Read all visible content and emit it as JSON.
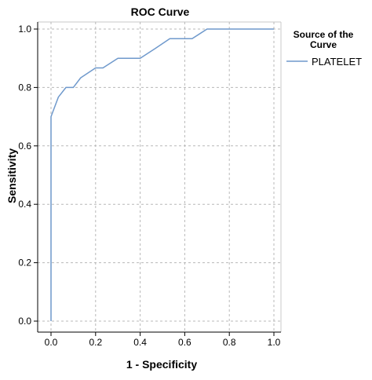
{
  "chart_data": {
    "type": "line",
    "title": "ROC Curve",
    "xlabel": "1 - Specificity",
    "ylabel": "Sensitivity",
    "xlim": [
      0,
      1
    ],
    "ylim": [
      0,
      1
    ],
    "xticks": [
      "0.0",
      "0.2",
      "0.4",
      "0.6",
      "0.8",
      "1.0"
    ],
    "yticks": [
      "0.0",
      "0.2",
      "0.4",
      "0.6",
      "0.8",
      "1.0"
    ],
    "grid": true,
    "grid_style": "dashed",
    "legend": {
      "title": "Source of the Curve",
      "position": "right",
      "entries": [
        "PLATELET"
      ]
    },
    "series": [
      {
        "name": "PLATELET",
        "color": "#6f99cc",
        "x": [
          0.0,
          0.0,
          0.0,
          0.033,
          0.067,
          0.1,
          0.133,
          0.2,
          0.233,
          0.3,
          0.4,
          0.467,
          0.533,
          0.633,
          0.7,
          1.0
        ],
        "y": [
          0.0,
          0.7,
          0.7,
          0.767,
          0.8,
          0.8,
          0.833,
          0.867,
          0.867,
          0.9,
          0.9,
          0.933,
          0.967,
          0.967,
          1.0,
          1.0
        ]
      }
    ]
  },
  "colors": {
    "line": "#6f99cc",
    "grid": "#b8b8b8",
    "axis": "#000000",
    "background": "#ffffff"
  }
}
